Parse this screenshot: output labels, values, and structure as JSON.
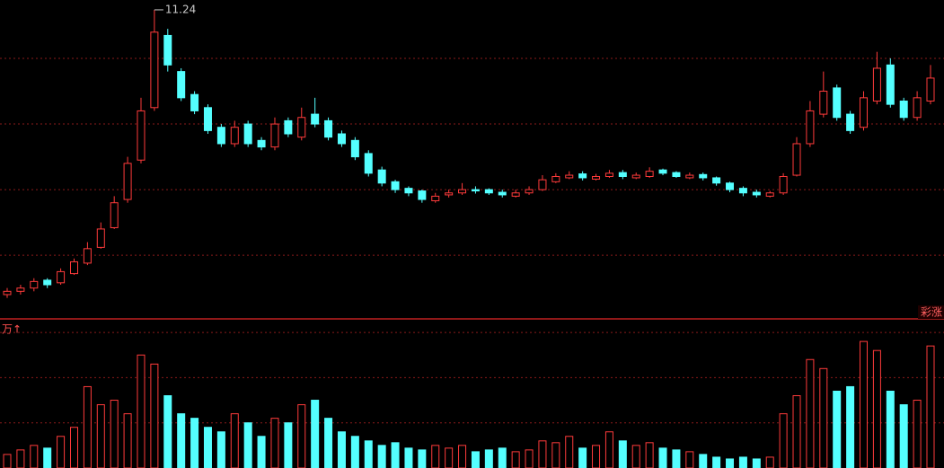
{
  "chart_data": {
    "type": "candlestick",
    "open": [
      6.9,
      6.95,
      7.0,
      7.12,
      7.08,
      7.22,
      7.38,
      7.62,
      7.92,
      8.35,
      8.95,
      9.75,
      10.85,
      10.3,
      9.95,
      9.75,
      9.45,
      9.2,
      9.5,
      9.25,
      9.15,
      9.55,
      9.3,
      9.65,
      9.55,
      9.35,
      9.25,
      9.05,
      8.8,
      8.62,
      8.52,
      8.48,
      8.33,
      8.42,
      8.45,
      8.5,
      8.5,
      8.46,
      8.4,
      8.45,
      8.5,
      8.62,
      8.68,
      8.74,
      8.66,
      8.7,
      8.76,
      8.68,
      8.7,
      8.8,
      8.76,
      8.68,
      8.73,
      8.68,
      8.6,
      8.52,
      8.46,
      8.4,
      8.45,
      8.72,
      9.2,
      9.65,
      10.05,
      9.65,
      9.45,
      9.85,
      10.4,
      9.85,
      9.6,
      9.85
    ],
    "high": [
      7.0,
      7.05,
      7.15,
      7.15,
      7.3,
      7.45,
      7.7,
      8.0,
      8.4,
      9.0,
      9.9,
      11.24,
      10.95,
      10.35,
      10.0,
      9.8,
      9.5,
      9.55,
      9.55,
      9.3,
      9.6,
      9.6,
      9.75,
      9.9,
      9.6,
      9.4,
      9.3,
      9.1,
      8.85,
      8.65,
      8.55,
      8.5,
      8.45,
      8.5,
      8.6,
      8.55,
      8.52,
      8.5,
      8.5,
      8.55,
      8.72,
      8.75,
      8.78,
      8.78,
      8.74,
      8.8,
      8.8,
      8.76,
      8.84,
      8.82,
      8.78,
      8.76,
      8.76,
      8.7,
      8.62,
      8.55,
      8.5,
      8.48,
      8.75,
      9.3,
      9.85,
      10.3,
      10.1,
      9.7,
      10.0,
      10.6,
      10.5,
      9.9,
      10.0,
      10.4
    ],
    "low": [
      6.85,
      6.9,
      6.95,
      7.0,
      7.05,
      7.2,
      7.35,
      7.6,
      7.9,
      8.3,
      8.9,
      9.7,
      10.3,
      9.85,
      9.65,
      9.35,
      9.15,
      9.15,
      9.15,
      9.1,
      9.1,
      9.3,
      9.25,
      9.45,
      9.25,
      9.15,
      8.95,
      8.7,
      8.55,
      8.45,
      8.4,
      8.3,
      8.3,
      8.38,
      8.42,
      8.44,
      8.42,
      8.38,
      8.38,
      8.42,
      8.48,
      8.6,
      8.66,
      8.64,
      8.64,
      8.68,
      8.66,
      8.66,
      8.68,
      8.72,
      8.68,
      8.66,
      8.64,
      8.56,
      8.46,
      8.4,
      8.38,
      8.38,
      8.42,
      8.7,
      9.15,
      9.6,
      9.55,
      9.35,
      9.4,
      9.8,
      9.75,
      9.55,
      9.55,
      9.8
    ],
    "close": [
      6.95,
      7.0,
      7.1,
      7.05,
      7.25,
      7.4,
      7.6,
      7.9,
      8.3,
      8.9,
      9.7,
      10.9,
      10.4,
      9.9,
      9.7,
      9.4,
      9.2,
      9.45,
      9.2,
      9.15,
      9.5,
      9.35,
      9.6,
      9.5,
      9.3,
      9.2,
      9.0,
      8.75,
      8.6,
      8.5,
      8.45,
      8.35,
      8.4,
      8.45,
      8.5,
      8.48,
      8.45,
      8.42,
      8.45,
      8.5,
      8.65,
      8.7,
      8.72,
      8.68,
      8.7,
      8.75,
      8.7,
      8.72,
      8.78,
      8.75,
      8.7,
      8.72,
      8.68,
      8.6,
      8.5,
      8.45,
      8.42,
      8.45,
      8.7,
      9.2,
      9.7,
      10.0,
      9.6,
      9.4,
      9.9,
      10.35,
      9.8,
      9.6,
      9.9,
      10.2
    ],
    "volume": [
      15,
      20,
      25,
      22,
      35,
      45,
      90,
      70,
      75,
      60,
      125,
      115,
      80,
      60,
      55,
      45,
      40,
      60,
      50,
      35,
      55,
      50,
      70,
      75,
      55,
      40,
      35,
      30,
      25,
      28,
      22,
      20,
      25,
      22,
      25,
      18,
      20,
      22,
      18,
      20,
      30,
      28,
      35,
      22,
      25,
      40,
      30,
      25,
      28,
      22,
      20,
      18,
      15,
      12,
      10,
      12,
      10,
      12,
      60,
      80,
      120,
      110,
      85,
      90,
      140,
      130,
      85,
      70,
      75,
      135
    ],
    "ylim": [
      6.53,
      11.39
    ],
    "yticks": [
      7.5,
      8.5,
      9.5,
      10.5
    ],
    "volume_ylim": [
      0,
      160
    ],
    "volume_yticks": [
      50,
      100,
      150
    ],
    "up_color": "#ff3b3b",
    "down_color": "#54ffff",
    "grid": true,
    "volume_unit": "万↑",
    "legend_label": "彩涨"
  }
}
